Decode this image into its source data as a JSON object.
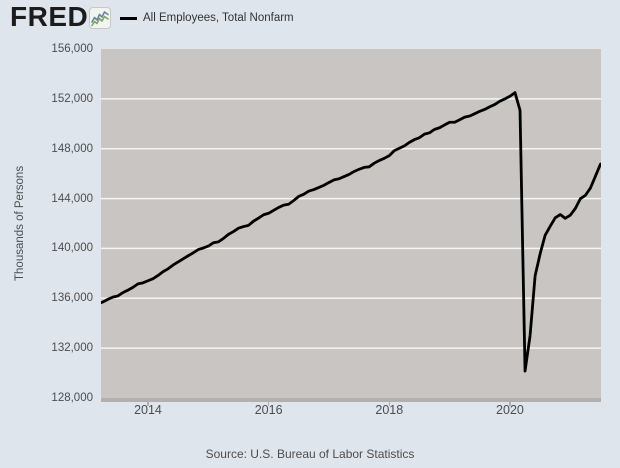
{
  "header": {
    "logo_text": "FRED",
    "logo_registered": "®",
    "legend": {
      "swatch_color": "#000000",
      "label": "All Employees, Total Nonfarm"
    }
  },
  "y_axis": {
    "title": "Thousands of Persons",
    "tick_labels": [
      "156,000",
      "152,000",
      "148,000",
      "144,000",
      "140,000",
      "136,000",
      "132,000",
      "128,000"
    ]
  },
  "x_axis": {
    "tick_labels": [
      "2014",
      "2016",
      "2018",
      "2020"
    ]
  },
  "footer": {
    "source": "Source: U.S. Bureau of Labor Statistics"
  },
  "colors": {
    "page_bg": "#dfe5ec",
    "plot_bg": "#c8c5c2",
    "gridline": "#f6f5f3",
    "axis_bar": "#b3afac",
    "line": "#000000",
    "axis_text": "#4d4d4d",
    "legend_text": "#333333",
    "logo_text": "#1c1c1c",
    "icon_blue": "#69869e",
    "icon_green": "#81a75f"
  },
  "chart_data": {
    "type": "line",
    "series_name": "All Employees, Total Nonfarm",
    "units": "Thousands of Persons",
    "frequency": "monthly",
    "start_year": 2013,
    "start_month": 3,
    "values": [
      135559,
      135698,
      135914,
      136096,
      136186,
      136455,
      136650,
      136875,
      137155,
      137239,
      137407,
      137575,
      137830,
      138137,
      138366,
      138672,
      138913,
      139162,
      139413,
      139651,
      139912,
      140036,
      140185,
      140451,
      140528,
      140802,
      141129,
      141353,
      141622,
      141755,
      141852,
      142190,
      142438,
      142701,
      142820,
      143057,
      143289,
      143475,
      143549,
      143850,
      144176,
      144353,
      144602,
      144722,
      144893,
      145068,
      145294,
      145500,
      145590,
      145765,
      145936,
      146174,
      146351,
      146500,
      146547,
      146839,
      147054,
      147230,
      147442,
      147848,
      148037,
      148230,
      148509,
      148732,
      148887,
      149169,
      149277,
      149553,
      149682,
      149909,
      150123,
      150125,
      150327,
      150537,
      150622,
      150811,
      151005,
      151160,
      151368,
      151553,
      151814,
      151998,
      152212,
      152504,
      151090,
      130161,
      133002,
      137802,
      139570,
      141063,
      141774,
      142454,
      142719,
      142412,
      142669,
      143205,
      143989,
      144258,
      144843,
      145793,
      146764
    ],
    "ylim": [
      128000,
      156000
    ],
    "xlim": [
      2013.221,
      2021.509
    ],
    "y_gridline_step": 4000,
    "x_tick_years": [
      2014,
      2016,
      2018,
      2020
    ],
    "grid": "horizontal-only",
    "legend_position": "top-left",
    "line_color": "#000000",
    "source": "U.S. Bureau of Labor Statistics"
  }
}
